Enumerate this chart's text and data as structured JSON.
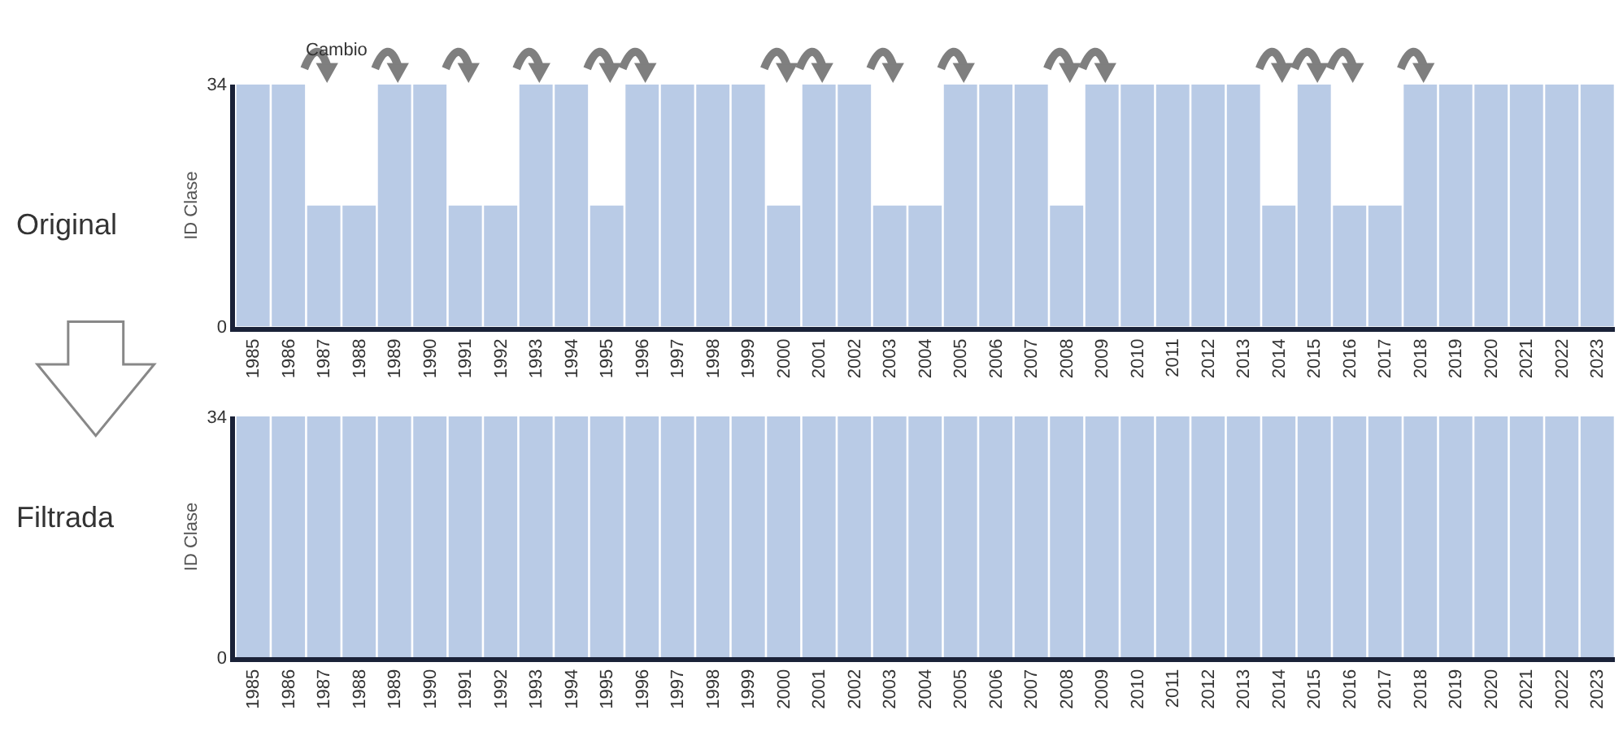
{
  "chart_data": [
    {
      "type": "bar",
      "ylabel": "ID Clase",
      "annotations": [
        "Original",
        "Cambio"
      ],
      "categories": [
        "1985",
        "1986",
        "1987",
        "1988",
        "1989",
        "1990",
        "1991",
        "1992",
        "1993",
        "1994",
        "1995",
        "1996",
        "1997",
        "1998",
        "1999",
        "2000",
        "2001",
        "2002",
        "2003",
        "2004",
        "2005",
        "2006",
        "2007",
        "2008",
        "2009",
        "2010",
        "2011",
        "2012",
        "2013",
        "2014",
        "2015",
        "2016",
        "2017",
        "2018",
        "2019",
        "2020",
        "2021",
        "2022",
        "2023"
      ],
      "values": [
        34,
        34,
        17,
        17,
        34,
        34,
        17,
        17,
        34,
        34,
        17,
        34,
        34,
        34,
        34,
        17,
        34,
        34,
        17,
        17,
        34,
        34,
        34,
        17,
        34,
        34,
        34,
        34,
        34,
        17,
        34,
        17,
        17,
        34,
        34,
        34,
        34,
        34,
        34
      ],
      "color": "#b9cbe6",
      "ylim": [
        0,
        34
      ],
      "yticks": [
        0,
        34
      ]
    },
    {
      "type": "bar",
      "ylabel": "ID Clase",
      "annotations": [
        "Filtrada"
      ],
      "categories": [
        "1985",
        "1986",
        "1987",
        "1988",
        "1989",
        "1990",
        "1991",
        "1992",
        "1993",
        "1994",
        "1995",
        "1996",
        "1997",
        "1998",
        "1999",
        "2000",
        "2001",
        "2002",
        "2003",
        "2004",
        "2005",
        "2006",
        "2007",
        "2008",
        "2009",
        "2010",
        "2011",
        "2012",
        "2013",
        "2014",
        "2015",
        "2016",
        "2017",
        "2018",
        "2019",
        "2020",
        "2021",
        "2022",
        "2023"
      ],
      "values": [
        34,
        34,
        34,
        34,
        34,
        34,
        34,
        34,
        34,
        34,
        34,
        34,
        34,
        34,
        34,
        34,
        34,
        34,
        34,
        34,
        34,
        34,
        34,
        34,
        34,
        34,
        34,
        34,
        34,
        34,
        34,
        34,
        34,
        34,
        34,
        34,
        34,
        34,
        34
      ],
      "color": "#b9cbe6",
      "ylim": [
        0,
        34
      ],
      "yticks": [
        0,
        34
      ]
    }
  ]
}
